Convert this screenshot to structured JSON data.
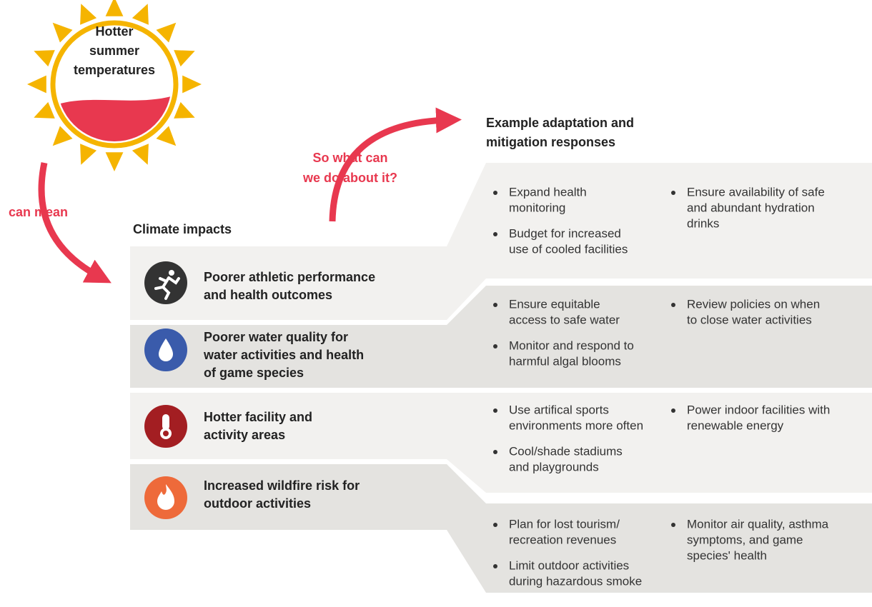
{
  "sun": {
    "label": [
      "Hotter",
      "summer",
      "temperatures"
    ]
  },
  "arrow_left": {
    "label": "can mean"
  },
  "arrow_right": {
    "label": [
      "So what can",
      "we do about it?"
    ]
  },
  "responses_heading": [
    "Example adaptation and",
    "mitigation responses"
  ],
  "impacts_heading": "Climate impacts",
  "impacts": [
    {
      "label": [
        "Poorer athletic performance",
        "and health outcomes"
      ],
      "responses": {
        "left": [
          [
            "Expand health",
            "monitoring"
          ],
          [
            "Budget for increased",
            "use of cooled facilities"
          ]
        ],
        "right": [
          [
            "Ensure availability of safe",
            "and abundant hydration",
            "drinks"
          ]
        ]
      }
    },
    {
      "label": [
        "Poorer water quality for",
        "water activities and health",
        "of game species"
      ],
      "responses": {
        "left": [
          [
            "Ensure equitable",
            "access to safe water"
          ],
          [
            "Monitor and respond to",
            "harmful algal blooms"
          ]
        ],
        "right": [
          [
            "Review policies on when",
            "to close water activities"
          ]
        ]
      }
    },
    {
      "label": [
        "Hotter facility and",
        "activity areas"
      ],
      "responses": {
        "left": [
          [
            "Use artifical sports",
            "environments more often"
          ],
          [
            "Cool/shade stadiums",
            "and playgrounds"
          ]
        ],
        "right": [
          [
            "Power indoor facilities with",
            "renewable energy"
          ]
        ]
      }
    },
    {
      "label": [
        "Increased wildfire risk for",
        "outdoor activities"
      ],
      "responses": {
        "left": [
          [
            "Plan for lost tourism/",
            "recreation revenues"
          ],
          [
            "Limit outdoor activities",
            "during hazardous smoke"
          ]
        ],
        "right": [
          [
            "Monitor air quality, asthma",
            "symptoms, and game",
            "species' health"
          ]
        ]
      }
    }
  ]
}
